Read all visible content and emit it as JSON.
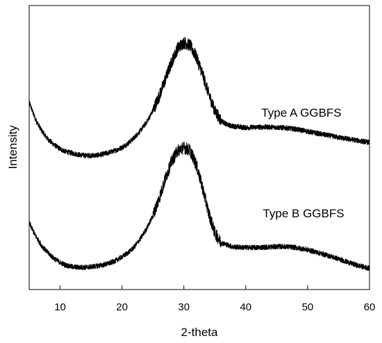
{
  "chart_data": {
    "type": "line",
    "title": "",
    "xlabel": "2-theta",
    "ylabel": "Intensity",
    "xlim": [
      5,
      60
    ],
    "ylim": [
      0,
      1
    ],
    "xticks": [
      10,
      20,
      30,
      40,
      50,
      60
    ],
    "yticks": [],
    "grid": false,
    "legend": "inline-labels",
    "series": [
      {
        "name": "Type A GGBFS",
        "x": [
          5,
          6,
          7,
          8,
          9,
          10,
          11,
          12,
          13,
          14,
          15,
          16,
          17,
          18,
          19,
          20,
          21,
          22,
          23,
          24,
          25,
          26,
          27,
          28,
          29,
          30,
          31,
          32,
          33,
          34,
          35,
          36,
          37,
          38,
          40,
          42,
          44,
          46,
          48,
          50,
          52,
          54,
          56,
          58,
          60
        ],
        "y": [
          0.66,
          0.6,
          0.56,
          0.53,
          0.51,
          0.495,
          0.485,
          0.48,
          0.475,
          0.472,
          0.472,
          0.473,
          0.477,
          0.483,
          0.49,
          0.5,
          0.515,
          0.535,
          0.56,
          0.59,
          0.63,
          0.68,
          0.74,
          0.8,
          0.85,
          0.87,
          0.86,
          0.82,
          0.76,
          0.69,
          0.63,
          0.595,
          0.58,
          0.575,
          0.57,
          0.572,
          0.572,
          0.57,
          0.565,
          0.557,
          0.548,
          0.54,
          0.532,
          0.525,
          0.518
        ]
      },
      {
        "name": "Type B GGBFS",
        "x": [
          5,
          6,
          7,
          8,
          9,
          10,
          11,
          12,
          13,
          14,
          15,
          16,
          17,
          18,
          19,
          20,
          21,
          22,
          23,
          24,
          25,
          26,
          27,
          28,
          29,
          30,
          31,
          32,
          33,
          34,
          35,
          36,
          38,
          40,
          42,
          44,
          46,
          48,
          50,
          52,
          54,
          56,
          58,
          60
        ],
        "y": [
          0.235,
          0.19,
          0.155,
          0.13,
          0.11,
          0.095,
          0.085,
          0.08,
          0.078,
          0.078,
          0.08,
          0.083,
          0.087,
          0.093,
          0.102,
          0.115,
          0.13,
          0.15,
          0.18,
          0.215,
          0.26,
          0.32,
          0.39,
          0.45,
          0.49,
          0.5,
          0.49,
          0.44,
          0.36,
          0.27,
          0.2,
          0.165,
          0.15,
          0.148,
          0.148,
          0.15,
          0.152,
          0.148,
          0.14,
          0.128,
          0.115,
          0.1,
          0.085,
          0.075
        ]
      }
    ]
  }
}
